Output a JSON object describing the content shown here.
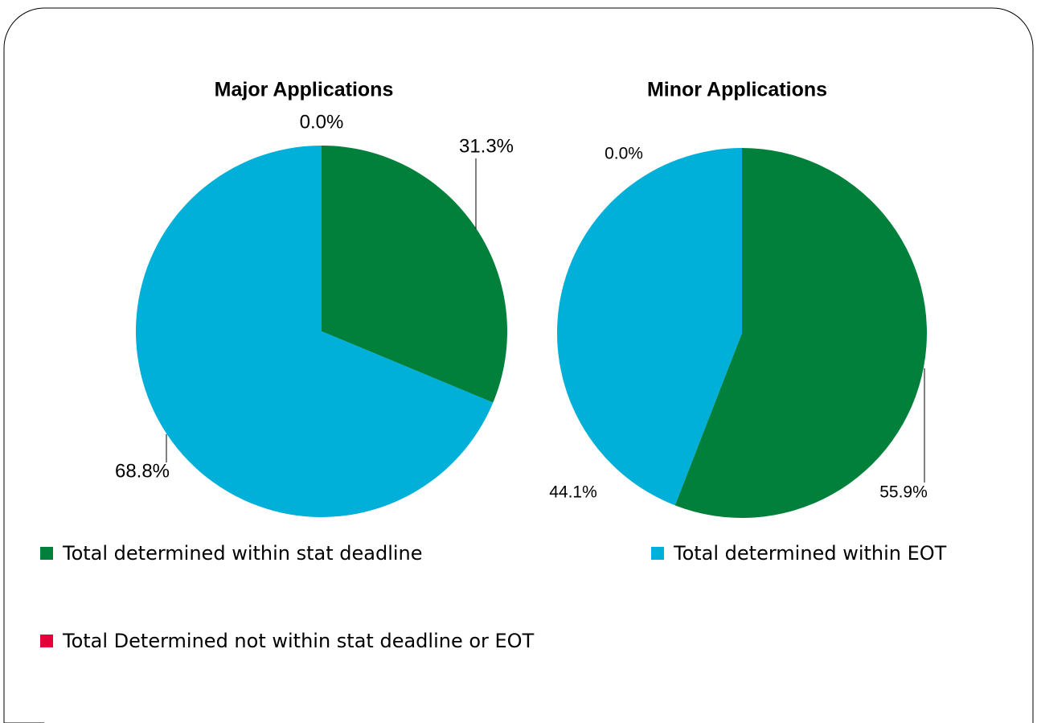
{
  "chart_data": [
    {
      "type": "pie",
      "title": "Major Applications",
      "values": [
        31.3,
        68.8,
        0.0
      ],
      "value_labels": [
        "31.3%",
        "68.8%",
        "0.0%"
      ]
    },
    {
      "type": "pie",
      "title": "Minor Applications",
      "values": [
        55.9,
        44.1,
        0.0
      ],
      "value_labels": [
        "55.9%",
        "44.1%",
        "0.0%"
      ]
    }
  ],
  "legend": {
    "labels": [
      "Total determined within stat deadline",
      "Total determined within EOT",
      "Total Determined not within stat deadline or EOT"
    ],
    "colors": [
      "#00803a",
      "#00b0d8",
      "#e4003b"
    ]
  }
}
